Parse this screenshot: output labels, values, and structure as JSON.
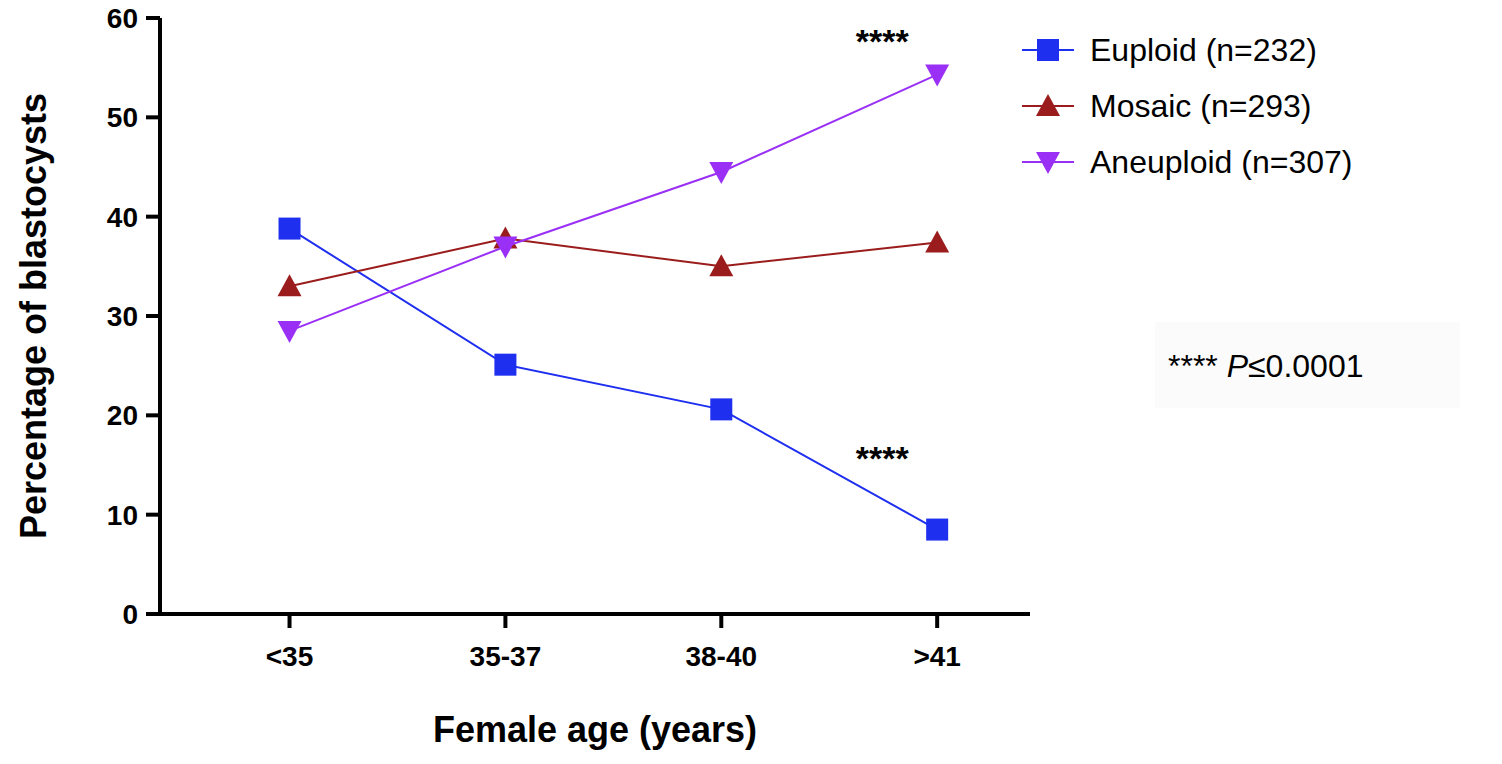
{
  "chart_data": {
    "type": "line",
    "x_label": "Female age (years)",
    "y_label": "Percentage of blastocysts",
    "categories": [
      "<35",
      "35-37",
      "38-40",
      ">41"
    ],
    "series": [
      {
        "name": "Euploid (n=232)",
        "color": "#1f2ff0",
        "marker": "square",
        "values": [
          38.8,
          25.1,
          20.6,
          8.5
        ]
      },
      {
        "name": "Mosaic (n=293)",
        "color": "#9b1c1c",
        "marker": "triangle",
        "values": [
          33.0,
          37.8,
          35.0,
          37.4
        ]
      },
      {
        "name": "Aneuploid (n=307)",
        "color": "#9a30f5",
        "marker": "triangle-down",
        "values": [
          28.5,
          37.0,
          44.5,
          54.3
        ]
      }
    ],
    "ylim": [
      0,
      60
    ],
    "yticks": [
      0,
      10,
      20,
      30,
      40,
      50,
      60
    ],
    "annotations": [
      "****",
      "****",
      "**** P≤0.0001"
    ],
    "legend": "right",
    "grid": false
  }
}
